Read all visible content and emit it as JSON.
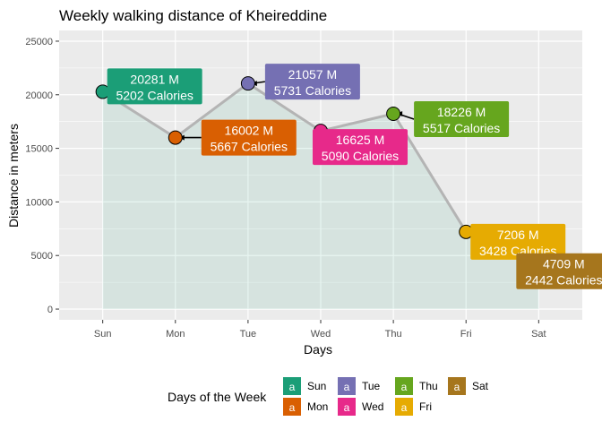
{
  "chart_data": {
    "type": "line",
    "title": "Weekly walking distance of Kheireddine",
    "xlabel": "Days",
    "ylabel": "Distance in meters",
    "categories": [
      "Sun",
      "Mon",
      "Tue",
      "Wed",
      "Thu",
      "Fri",
      "Sat"
    ],
    "values": [
      20281,
      16002,
      21057,
      16625,
      18226,
      7206,
      4709
    ],
    "calories": [
      5202,
      5667,
      5731,
      5090,
      5517,
      3428,
      2442
    ],
    "labels": [
      [
        "20281 M",
        "5202 Calories"
      ],
      [
        "16002 M",
        "5667 Calories"
      ],
      [
        "21057 M",
        "5731 Calories"
      ],
      [
        "16625 M",
        "5090 Calories"
      ],
      [
        "18226 M",
        "5517 Calories"
      ],
      [
        "7206 M",
        "3428 Calories"
      ],
      [
        "4709 M",
        "2442 Calories"
      ]
    ],
    "colors": [
      "#1b9e77",
      "#d95f02",
      "#7570b3",
      "#e7298a",
      "#66a61e",
      "#e6ab02",
      "#a6761d"
    ],
    "ylim": [
      -1000,
      26000
    ],
    "yticks": [
      0,
      5000,
      10000,
      15000,
      20000,
      25000
    ],
    "ytick_labels": [
      "0",
      "5000",
      "10000",
      "15000",
      "20000",
      "25000"
    ],
    "area_fill": "#1b9e77",
    "line_color": "#b4b4b4",
    "panel_background": "#ebebeb",
    "grid": true,
    "legend": {
      "title": "Days of the  Week",
      "position": "bottom",
      "key_letter": "a",
      "rows": [
        [
          "Sun",
          "Tue",
          "Thu",
          "Sat"
        ],
        [
          "Mon",
          "Wed",
          "Fri"
        ]
      ]
    }
  }
}
